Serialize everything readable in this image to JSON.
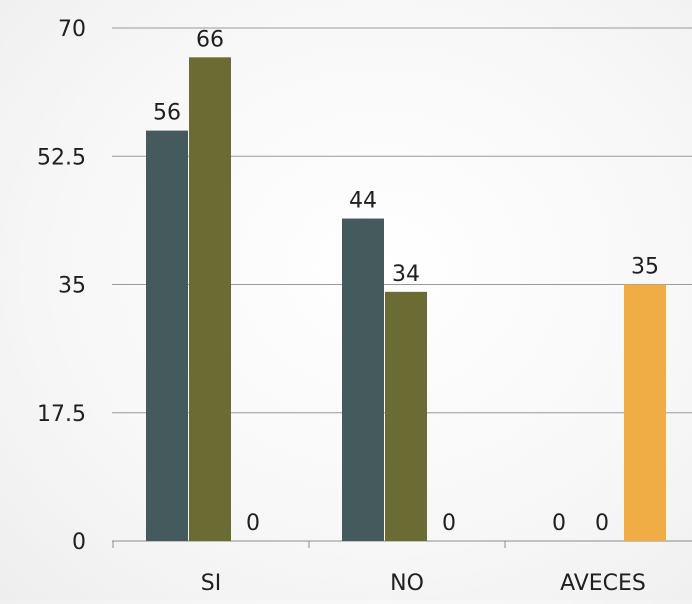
{
  "chart_data": {
    "type": "bar",
    "categories": [
      "SI",
      "NO",
      "AVECES"
    ],
    "series": [
      {
        "values": [
          56,
          44,
          0
        ],
        "color": "#455a5c"
      },
      {
        "values": [
          66,
          34,
          0
        ],
        "color": "#6b6c34"
      },
      {
        "values": [
          0,
          0,
          35
        ],
        "color": "#f0ad45"
      }
    ],
    "ylim": [
      0,
      70
    ],
    "yticks": [
      "0",
      "17.5",
      "35",
      "52.5",
      "70"
    ],
    "data_labels": true,
    "grid": true,
    "legend": "none",
    "title": "",
    "xlabel": "",
    "ylabel": ""
  }
}
